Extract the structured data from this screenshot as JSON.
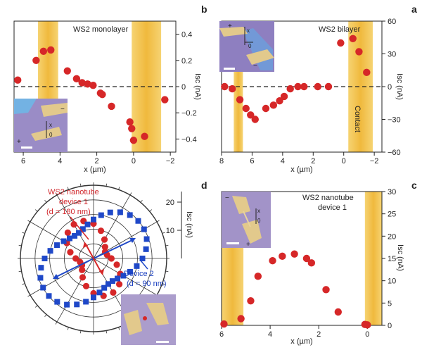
{
  "colors": {
    "red": "#d62728",
    "blue": "#1f48c8",
    "contact_gold": "#f2c14e",
    "axis": "#222222",
    "inset_bg": "#9b8cc2"
  },
  "chart_data": [
    {
      "id": "a",
      "type": "scatter",
      "panel_letter": "a",
      "label": "WS2 bilayer",
      "xlabel": "x (µm)",
      "ylabel": "Isc (nA)",
      "xlim": [
        8,
        -2.5
      ],
      "ylim": [
        -60,
        60
      ],
      "x_ticks": [
        "8",
        "6",
        "4",
        "2",
        "0",
        "−2"
      ],
      "y_ticks": [
        "60",
        "30",
        "0",
        "−30",
        "−60"
      ],
      "annotation": "Contact",
      "contact_bands": [
        [
          6.6,
          7.2
        ],
        [
          -0.3,
          -1.9
        ]
      ],
      "series": [
        {
          "x": [
            7.8,
            7.3,
            6.8,
            6.4,
            6.1,
            5.8,
            5.1,
            4.6,
            4.2,
            3.9,
            3.5,
            3.0,
            2.6,
            1.7,
            1.0,
            0.2,
            -0.6,
            -1.0,
            -1.5
          ],
          "y": [
            0,
            -2,
            -12,
            -20,
            -26,
            -30,
            -20,
            -17,
            -13,
            -9,
            -2,
            0,
            0,
            0,
            0,
            40,
            44,
            32,
            13
          ]
        }
      ]
    },
    {
      "id": "b",
      "type": "scatter",
      "panel_letter": "b",
      "label": "WS2 monolayer",
      "xlabel": "x (µm)",
      "ylabel": "Isc (nA)",
      "xlim": [
        6.5,
        -2.3
      ],
      "ylim": [
        -0.5,
        0.5
      ],
      "x_ticks": [
        "6",
        "4",
        "2",
        "0",
        "−2"
      ],
      "y_ticks": [
        "0.4",
        "0.2",
        "0",
        "−0.2",
        "−0.4"
      ],
      "contact_bands": [
        [
          4.1,
          5.2
        ],
        [
          0.1,
          -1.5
        ]
      ],
      "series": [
        {
          "x": [
            6.3,
            5.3,
            4.9,
            4.5,
            3.6,
            3.1,
            2.8,
            2.5,
            2.2,
            1.8,
            1.7,
            1.2,
            0.2,
            0.1,
            0.0,
            -0.6,
            -1.7
          ],
          "y": [
            0.05,
            0.2,
            0.27,
            0.28,
            0.12,
            0.06,
            0.03,
            0.02,
            0.01,
            -0.05,
            -0.06,
            -0.15,
            -0.27,
            -0.32,
            -0.41,
            -0.38,
            -0.1
          ]
        }
      ]
    },
    {
      "id": "c",
      "type": "scatter",
      "panel_letter": "c",
      "label_lines": [
        "WS2 nanotube",
        "device 1"
      ],
      "xlabel": "x (µm)",
      "ylabel": "Isc (nA)",
      "xlim": [
        6,
        -0.6
      ],
      "ylim": [
        0,
        30
      ],
      "x_ticks": [
        "6",
        "4",
        "2",
        "0"
      ],
      "y_ticks": [
        "0",
        "5",
        "10",
        "15",
        "20",
        "25",
        "30"
      ],
      "contact_bands": [
        [
          5.1,
          6.0
        ],
        [
          0.1,
          -0.6
        ]
      ],
      "series": [
        {
          "x": [
            5.9,
            5.2,
            4.8,
            4.5,
            3.9,
            3.5,
            3.0,
            2.5,
            2.3,
            1.7,
            1.2,
            0.1,
            0.0
          ],
          "y": [
            0.3,
            1.5,
            5.5,
            11,
            14.5,
            15.5,
            16,
            15,
            14,
            8,
            3,
            0.2,
            0.1
          ]
        }
      ]
    },
    {
      "id": "d",
      "type": "polar",
      "panel_letter": "d",
      "radial_label": "Isc (nA)",
      "r_ticks": [
        "10",
        "20"
      ],
      "r_max": 25,
      "series": [
        {
          "name": "WS2 nanotube device 1 (d = 180 nm)",
          "lines": [
            "WS2 nanotube",
            "device 1",
            "(d = 180 nm)"
          ],
          "color": "#d62728",
          "marker": "circle",
          "r0": 9,
          "amp": 4.5,
          "phase_deg": 115
        },
        {
          "name": "Device 2 (d = 90 nm)",
          "lines": [
            "Device 2",
            "(d = 90 nm)"
          ],
          "color": "#1f48c8",
          "marker": "square",
          "r0": 15,
          "amp": 5,
          "phase_deg": 35
        }
      ]
    }
  ]
}
